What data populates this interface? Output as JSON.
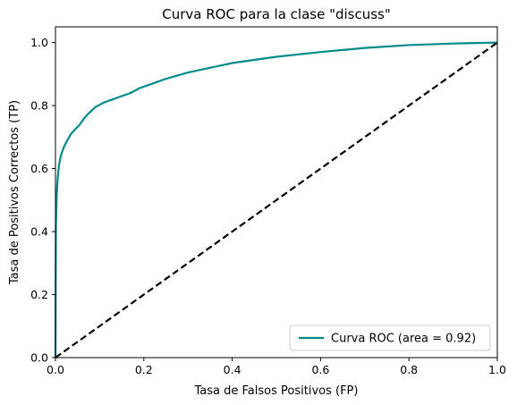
{
  "chart_data": {
    "type": "line",
    "title": "Curva ROC para la clase \"discuss\"",
    "xlabel": "Tasa de Falsos Positivos (FP)",
    "ylabel": "Tasa de Positivos Correctos (TP)",
    "xlim": [
      0.0,
      1.0
    ],
    "ylim": [
      0.0,
      1.05
    ],
    "x_ticks": [
      "0.0",
      "0.2",
      "0.4",
      "0.6",
      "0.8",
      "1.0"
    ],
    "y_ticks": [
      "0.0",
      "0.2",
      "0.4",
      "0.6",
      "0.8",
      "1.0"
    ],
    "grid": false,
    "legend_position": "bottom-right",
    "series": [
      {
        "name": "Curva ROC (area = 0.92)",
        "color": "#008b8b",
        "style": "solid",
        "x": [
          0.0,
          0.001,
          0.003,
          0.005,
          0.008,
          0.012,
          0.018,
          0.025,
          0.035,
          0.045,
          0.055,
          0.065,
          0.075,
          0.09,
          0.11,
          0.13,
          0.15,
          0.17,
          0.19,
          0.22,
          0.25,
          0.3,
          0.35,
          0.4,
          0.45,
          0.5,
          0.6,
          0.7,
          0.8,
          0.9,
          1.0
        ],
        "y": [
          0.0,
          0.42,
          0.52,
          0.57,
          0.61,
          0.64,
          0.665,
          0.685,
          0.71,
          0.725,
          0.74,
          0.76,
          0.775,
          0.795,
          0.81,
          0.82,
          0.83,
          0.84,
          0.855,
          0.87,
          0.885,
          0.905,
          0.92,
          0.935,
          0.945,
          0.955,
          0.97,
          0.983,
          0.992,
          0.997,
          1.0
        ]
      },
      {
        "name": "",
        "color": "#000000",
        "style": "dashed",
        "x": [
          0.0,
          1.0
        ],
        "y": [
          0.0,
          1.0
        ]
      }
    ]
  }
}
